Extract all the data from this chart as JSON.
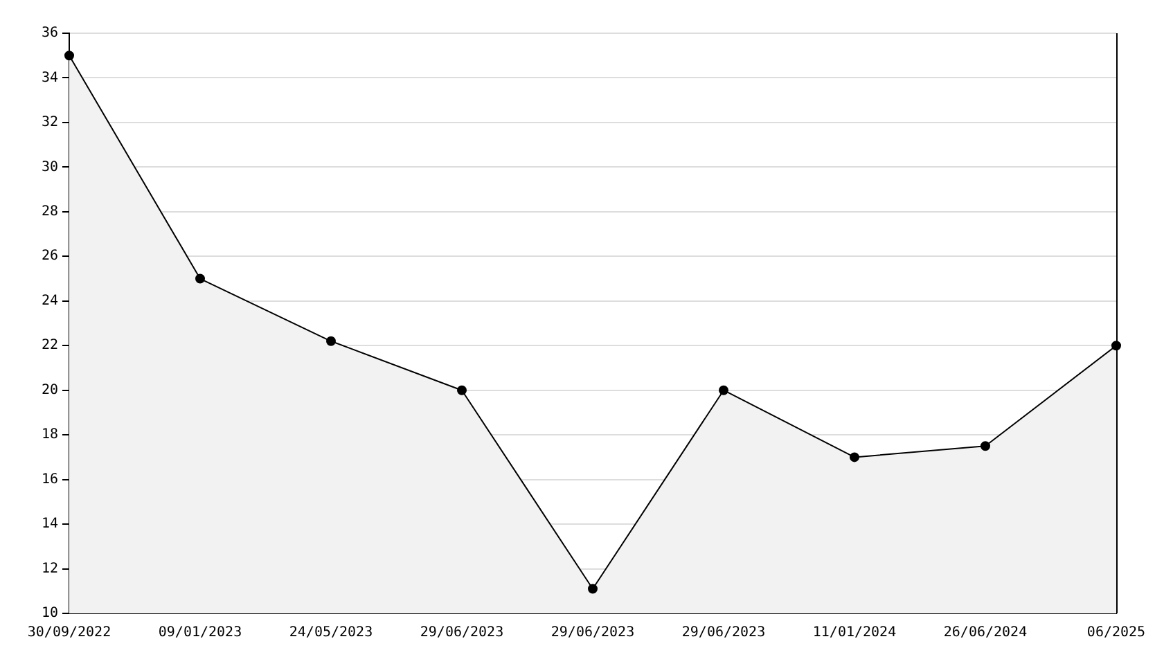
{
  "chart_data": {
    "type": "area",
    "categories": [
      "30/09/2022",
      "09/01/2023",
      "24/05/2023",
      "29/06/2023",
      "29/06/2023",
      "29/06/2023",
      "11/01/2024",
      "26/06/2024",
      "06/2025"
    ],
    "series": [
      {
        "color": "#000000",
        "values": [
          35,
          25,
          22.2,
          20,
          11.1,
          20,
          17,
          17.5,
          22
        ]
      }
    ],
    "ylim": [
      10,
      36
    ],
    "yticks": [
      10,
      12,
      14,
      16,
      18,
      20,
      22,
      24,
      26,
      28,
      30,
      32,
      34,
      36
    ],
    "grid": "y",
    "legend": false,
    "marker": "circle",
    "line_style": "solid"
  }
}
